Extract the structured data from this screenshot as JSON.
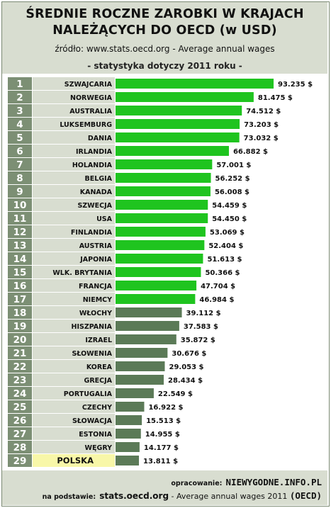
{
  "header": {
    "title_line1": "ŚREDNIE ROCZNE ZAROBKI W KRAJACH",
    "title_line2": "NALEŻĄCYCH DO OECD (w USD)",
    "source": "źródło: www.stats.oecd.org - Average annual wages",
    "note": "- statystyka dotyczy 2011 roku -"
  },
  "footer": {
    "credit_label": "opracowanie:",
    "credit_site": "NIEWYGODNE.INFO.PL",
    "basis_label": "na podstawie:",
    "basis_site": "stats.oecd.org",
    "basis_rest": " - Average annual wages 2011 ",
    "basis_org": "(OECD)"
  },
  "colors": {
    "rank_bg": "#7c8f74",
    "name_bg": "#d8ddd0",
    "bar_green": "#1fc41f",
    "bar_gray": "#5b7a57",
    "highlight_bg": "#f8f7a8"
  },
  "chart_data": {
    "type": "bar",
    "orientation": "horizontal",
    "title": "ŚREDNIE ROCZNE ZAROBKI W KRAJACH NALEŻĄCYCH DO OECD (w USD)",
    "xlim": [
      0,
      93235
    ],
    "highlight": "POLSKA",
    "ranks": [
      "1",
      "2",
      "3",
      "4",
      "5",
      "6",
      "7",
      "8",
      "9",
      "10",
      "11",
      "12",
      "13",
      "14",
      "15",
      "16",
      "17",
      "18",
      "19",
      "20",
      "21",
      "22",
      "23",
      "24",
      "25",
      "26",
      "27",
      "28",
      "29"
    ],
    "categories": [
      "SZWAJCARIA",
      "NORWEGIA",
      "AUSTRALIA",
      "LUKSEMBURG",
      "DANIA",
      "IRLANDIA",
      "HOLANDIA",
      "BELGIA",
      "KANADA",
      "SZWECJA",
      "USA",
      "FINLANDIA",
      "AUSTRIA",
      "JAPONIA",
      "WLK. BRYTANIA",
      "FRANCJA",
      "NIEMCY",
      "WŁOCHY",
      "HISZPANIA",
      "IZRAEL",
      "SŁOWENIA",
      "KOREA",
      "GRECJA",
      "PORTUGALIA",
      "CZECHY",
      "SŁOWACJA",
      "ESTONIA",
      "WĘGRY",
      "POLSKA"
    ],
    "values": [
      93235,
      81475,
      74512,
      73203,
      73032,
      66882,
      57001,
      56252,
      56008,
      54459,
      54450,
      53069,
      52404,
      51613,
      50366,
      47704,
      46984,
      39112,
      37583,
      35872,
      30676,
      29053,
      28434,
      22549,
      16922,
      15513,
      14955,
      14177,
      13811
    ],
    "value_labels": [
      "93.235 $",
      "81.475 $",
      "74.512 $",
      "73.203 $",
      "73.032 $",
      "66.882 $",
      "57.001 $",
      "56.252 $",
      "56.008 $",
      "54.459 $",
      "54.450 $",
      "53.069 $",
      "52.404 $",
      "51.613 $",
      "50.366 $",
      "47.704 $",
      "46.984 $",
      "39.112 $",
      "37.583 $",
      "35.872 $",
      "30.676 $",
      "29.053 $",
      "28.434 $",
      "22.549 $",
      "16.922 $",
      "15.513 $",
      "14.955 $",
      "14.177 $",
      "13.811 $"
    ],
    "bar_colors": [
      "green",
      "green",
      "green",
      "green",
      "green",
      "green",
      "green",
      "green",
      "green",
      "green",
      "green",
      "green",
      "green",
      "green",
      "green",
      "green",
      "green",
      "gray",
      "gray",
      "gray",
      "gray",
      "gray",
      "gray",
      "gray",
      "gray",
      "gray",
      "gray",
      "gray",
      "gray"
    ]
  }
}
